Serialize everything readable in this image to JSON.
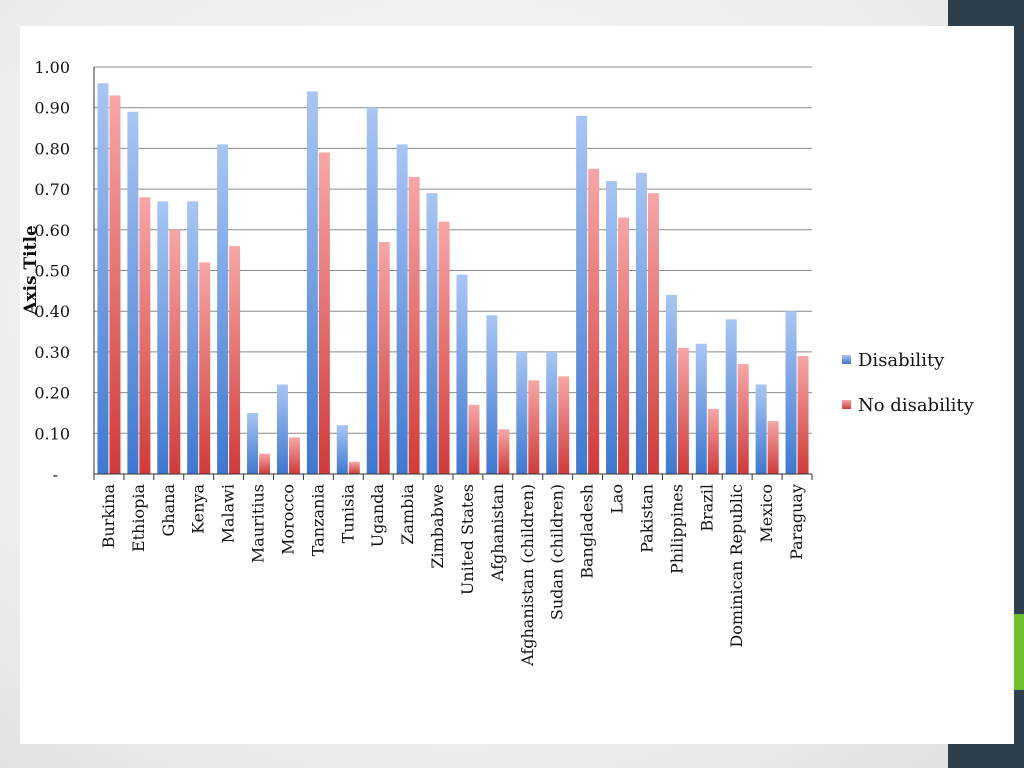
{
  "chart_data": {
    "type": "bar",
    "title": "",
    "xlabel": "",
    "ylabel": "Axis Title",
    "ylim": [
      0,
      1.0
    ],
    "yticks": [
      "-",
      "0.10",
      "0.20",
      "0.30",
      "0.40",
      "0.50",
      "0.60",
      "0.70",
      "0.80",
      "0.90",
      "1.00"
    ],
    "grid": true,
    "legend_position": "right",
    "categories": [
      "Burkina",
      "Ethiopia",
      "Ghana",
      "Kenya",
      "Malawi",
      "Mauritius",
      "Morocco",
      "Tanzania",
      "Tunisia",
      "Uganda",
      "Zambia",
      "Zimbabwe",
      "United States",
      "Afghanistan",
      "Afghanistan (children)",
      "Sudan (children)",
      "Bangladesh",
      "Lao",
      "Pakistan",
      "Philippines",
      "Brazil",
      "Dominican Republic",
      "Mexico",
      "Paraguay"
    ],
    "series": [
      {
        "name": "Disability",
        "color": "#6f9be0",
        "values": [
          0.96,
          0.89,
          0.67,
          0.67,
          0.81,
          0.15,
          0.22,
          0.94,
          0.12,
          0.9,
          0.81,
          0.69,
          0.49,
          0.39,
          0.3,
          0.3,
          0.88,
          0.72,
          0.74,
          0.44,
          0.32,
          0.38,
          0.22,
          0.4
        ]
      },
      {
        "name": "No disability",
        "color": "#e06a6a",
        "values": [
          0.93,
          0.68,
          0.6,
          0.52,
          0.56,
          0.05,
          0.09,
          0.79,
          0.03,
          0.57,
          0.73,
          0.62,
          0.17,
          0.11,
          0.23,
          0.24,
          0.75,
          0.63,
          0.69,
          0.31,
          0.16,
          0.27,
          0.13,
          0.29
        ]
      }
    ]
  }
}
